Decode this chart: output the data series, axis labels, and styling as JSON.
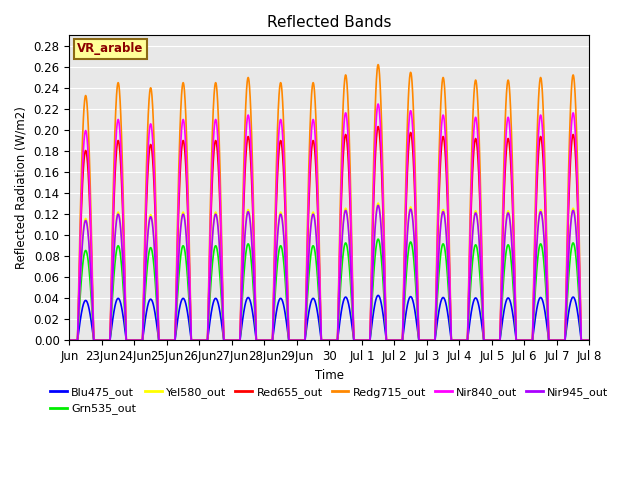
{
  "title": "Reflected Bands",
  "xlabel": "Time",
  "ylabel": "Reflected Radiation (W/m2)",
  "annotation": "VR_arable",
  "ylim": [
    0,
    0.29
  ],
  "yticks": [
    0.0,
    0.02,
    0.04,
    0.06,
    0.08,
    0.1,
    0.12,
    0.14,
    0.16,
    0.18,
    0.2,
    0.22,
    0.24,
    0.26,
    0.28
  ],
  "xtick_labels": [
    "Jun",
    "23Jun",
    "24Jun",
    "25Jun",
    "26Jun",
    "27Jun",
    "28Jun",
    "29Jun",
    "30",
    "Jul 1",
    "Jul 2",
    "Jul 3",
    "Jul 4",
    "Jul 5",
    "Jul 6",
    "Jul 7",
    "Jul 8"
  ],
  "series": [
    {
      "name": "Blu475_out",
      "color": "#0000FF",
      "peak": 0.04,
      "lw": 1.2
    },
    {
      "name": "Grn535_out",
      "color": "#00EE00",
      "peak": 0.09,
      "lw": 1.2
    },
    {
      "name": "Yel580_out",
      "color": "#FFFF00",
      "peak": 0.122,
      "lw": 1.2
    },
    {
      "name": "Red655_out",
      "color": "#FF0000",
      "peak": 0.19,
      "lw": 1.2
    },
    {
      "name": "Redg715_out",
      "color": "#FF8800",
      "peak": 0.245,
      "lw": 1.2
    },
    {
      "name": "Nir840_out",
      "color": "#FF00FF",
      "peak": 0.21,
      "lw": 1.2
    },
    {
      "name": "Nir945_out",
      "color": "#AA00FF",
      "peak": 0.12,
      "lw": 1.2
    }
  ],
  "peak_mults": [
    0.95,
    1.0,
    0.98,
    1.0,
    1.0,
    1.02,
    1.0,
    1.0,
    1.03,
    1.07,
    1.04,
    1.02,
    1.01,
    1.01,
    1.02,
    1.03
  ],
  "days": 16,
  "points_per_day": 200,
  "background_color": "#E8E8E8",
  "title_fontsize": 11,
  "label_fontsize": 8.5,
  "legend_fontsize": 8
}
